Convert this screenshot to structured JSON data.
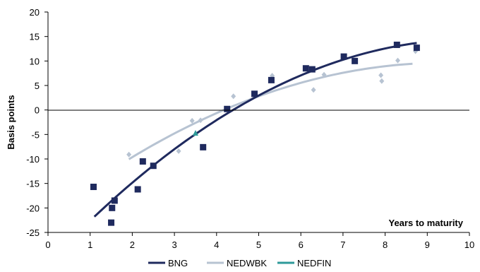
{
  "chart_data": {
    "type": "scatter",
    "title": "",
    "xlabel": "Years to maturity",
    "ylabel": "Basis points",
    "xlim": [
      0,
      10
    ],
    "ylim": [
      -25,
      20
    ],
    "x_ticks": [
      0,
      1,
      2,
      3,
      4,
      5,
      6,
      7,
      8,
      9,
      10
    ],
    "y_ticks": [
      -25,
      -20,
      -15,
      -10,
      -5,
      0,
      5,
      10,
      15,
      20
    ],
    "grid": false,
    "legend_position": "bottom",
    "series": [
      {
        "name": "BNG",
        "color": "#1f2a5e",
        "marker": "square",
        "points": [
          [
            1.08,
            -15.7
          ],
          [
            1.5,
            -23.0
          ],
          [
            1.52,
            -20.0
          ],
          [
            1.58,
            -18.5
          ],
          [
            2.13,
            -16.2
          ],
          [
            2.25,
            -10.5
          ],
          [
            2.5,
            -11.4
          ],
          [
            3.68,
            -7.6
          ],
          [
            4.25,
            0.2
          ],
          [
            4.9,
            3.3
          ],
          [
            5.3,
            6.1
          ],
          [
            6.12,
            8.5
          ],
          [
            6.27,
            8.3
          ],
          [
            7.02,
            10.9
          ],
          [
            7.28,
            10.0
          ],
          [
            8.28,
            13.3
          ],
          [
            8.75,
            12.7
          ]
        ],
        "trend": {
          "x_range": [
            1.1,
            8.75
          ],
          "fit": "quadratic"
        }
      },
      {
        "name": "NEDWBK",
        "color": "#b7c3d2",
        "marker": "diamond",
        "points": [
          [
            1.92,
            -9.1
          ],
          [
            3.1,
            -8.4
          ],
          [
            3.42,
            -2.2
          ],
          [
            3.62,
            -2.1
          ],
          [
            4.4,
            2.8
          ],
          [
            5.32,
            7.0
          ],
          [
            6.3,
            4.1
          ],
          [
            6.55,
            7.2
          ],
          [
            7.9,
            7.1
          ],
          [
            7.92,
            5.9
          ],
          [
            8.3,
            10.1
          ],
          [
            8.72,
            12.0
          ]
        ],
        "trend": {
          "x_range": [
            1.92,
            8.65
          ],
          "fit": "quadratic"
        }
      },
      {
        "name": "NEDFIN",
        "color": "#2e9a9a",
        "marker": "triangle",
        "points": [
          [
            3.5,
            -4.8
          ]
        ]
      }
    ]
  }
}
